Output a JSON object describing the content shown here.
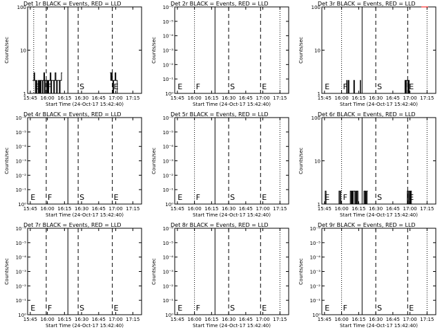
{
  "figure": {
    "background": "#ffffff",
    "foreground": "#000000",
    "lld_color": "#ff0000"
  },
  "chart_data": [
    {
      "type": "line",
      "title": "Det 1r BLACK = Events, RED = LLD",
      "xlabel": "Start Time (24-Oct-17 15:42:40)",
      "ylabel": "Counts/sec",
      "y_scale": "log",
      "ylim": [
        1,
        100
      ],
      "yticks": [
        "1",
        "10",
        "100"
      ],
      "xlim": [
        "15:42:40",
        "17:22:40"
      ],
      "xticks": [
        "15:45",
        "16:00",
        "16:15",
        "16:30",
        "16:45",
        "17:00",
        "17:15"
      ],
      "markers": [
        {
          "label": "E",
          "time": "15:48",
          "line": "dotted"
        },
        {
          "label": "F",
          "time": "15:59",
          "line": "dashed"
        },
        {
          "label": "S",
          "time": "16:27",
          "line": "dashed"
        },
        {
          "label": "E",
          "time": "16:57",
          "line": "dashed"
        }
      ],
      "extra_lines": [
        {
          "time": "16:18",
          "line": "solid"
        }
      ],
      "series": [
        {
          "color": "#000000",
          "segments": [
            {
              "start": "15:47",
              "end": "16:13",
              "values": [
                2,
                2,
                3,
                2,
                1,
                2,
                1,
                1,
                2,
                1,
                2,
                1,
                2,
                2,
                1,
                2,
                3,
                1,
                2,
                2,
                1,
                2,
                1,
                2,
                2,
                3,
                1,
                2,
                2,
                2,
                1,
                2,
                3,
                2,
                1,
                2,
                2,
                2,
                1,
                2,
                2,
                3
              ]
            },
            {
              "start": "16:55",
              "end": "17:02",
              "values": [
                3,
                2,
                3,
                2,
                1,
                2,
                2,
                3,
                2,
                2,
                1
              ]
            }
          ]
        }
      ]
    },
    {
      "type": "line",
      "title": "Det 2r BLACK = Events, RED = LLD",
      "xlabel": "Start Time (24-Oct-17 15:42:40)",
      "ylabel": "Counts/sec",
      "y_scale": "log",
      "ylim": [
        1,
        1e-06
      ],
      "yticks": [
        "10⁰",
        "10⁻¹",
        "10⁻²",
        "10⁻³",
        "10⁻⁴",
        "10⁻⁵",
        "10⁻⁶"
      ],
      "xlim": [
        "15:42:40",
        "17:22:40"
      ],
      "xticks": [
        "15:45",
        "16:00",
        "16:15",
        "16:30",
        "16:45",
        "17:00",
        "17:15"
      ],
      "markers": [
        {
          "label": "E",
          "time": "15:44",
          "line": "none"
        },
        {
          "label": "F",
          "time": "16:00",
          "line": "dotted"
        },
        {
          "label": "S",
          "time": "16:30",
          "line": "dashed"
        },
        {
          "label": "E",
          "time": "16:58",
          "line": "dashed"
        }
      ],
      "extra_lines": [
        {
          "time": "16:18",
          "line": "solid"
        },
        {
          "time": "17:15",
          "line": "dotted"
        }
      ],
      "series": []
    },
    {
      "type": "line",
      "title": "Det 3r BLACK = Events, RED = LLD",
      "xlabel": "Start Time (24-Oct-17 15:42:40)",
      "ylabel": "Counts/sec",
      "y_scale": "log",
      "ylim": [
        1,
        100
      ],
      "yticks": [
        "1",
        "10",
        "100"
      ],
      "xlim": [
        "15:42:40",
        "17:22:40"
      ],
      "xticks": [
        "15:45",
        "16:00",
        "16:15",
        "16:30",
        "16:45",
        "17:00",
        "17:15"
      ],
      "markers": [
        {
          "label": "E",
          "time": "15:44",
          "line": "none"
        },
        {
          "label": "F",
          "time": "16:00",
          "line": "dotted"
        },
        {
          "label": "S",
          "time": "16:30",
          "line": "dashed"
        },
        {
          "label": "E",
          "time": "16:58",
          "line": "dashed"
        }
      ],
      "extra_lines": [
        {
          "time": "16:18",
          "line": "solid"
        },
        {
          "time": "17:15",
          "line": "dotted"
        }
      ],
      "series": [
        {
          "color": "#000000",
          "segments": [
            {
              "start": "16:04",
              "end": "16:07",
              "values": [
                1,
                2,
                1,
                1,
                2,
                1
              ]
            },
            {
              "start": "16:10",
              "end": "16:12",
              "values": [
                1,
                2,
                1
              ]
            },
            {
              "start": "16:16",
              "end": "16:17",
              "values": [
                1,
                2,
                1
              ]
            },
            {
              "start": "16:55",
              "end": "17:00",
              "values": [
                1,
                2,
                1,
                2,
                2,
                1,
                2,
                1
              ]
            }
          ]
        },
        {
          "color": "#ff0000",
          "segments": [
            {
              "start": "17:10",
              "end": "17:16",
              "values": [
                100,
                100,
                100,
                100
              ]
            }
          ]
        }
      ]
    },
    {
      "type": "line",
      "title": "Det 4r BLACK = Events, RED = LLD",
      "xlabel": "Start Time (24-Oct-17 15:42:40)",
      "ylabel": "Counts/sec",
      "y_scale": "log",
      "ylim": [
        1,
        1e-06
      ],
      "yticks": [
        "10⁰",
        "10⁻¹",
        "10⁻²",
        "10⁻³",
        "10⁻⁴",
        "10⁻⁵",
        "10⁻⁶"
      ],
      "xlim": [
        "15:42:40",
        "17:22:40"
      ],
      "xticks": [
        "15:45",
        "16:00",
        "16:15",
        "16:30",
        "16:45",
        "17:00",
        "17:15"
      ],
      "markers": [
        {
          "label": "E",
          "time": "15:44",
          "line": "none"
        },
        {
          "label": "F",
          "time": "15:59",
          "line": "dashed"
        },
        {
          "label": "S",
          "time": "16:27",
          "line": "dashed"
        },
        {
          "label": "E",
          "time": "16:57",
          "line": "dashed"
        }
      ],
      "extra_lines": [
        {
          "time": "16:18",
          "line": "solid"
        }
      ],
      "series": []
    },
    {
      "type": "line",
      "title": "Det 5r BLACK = Events, RED = LLD",
      "xlabel": "Start Time (24-Oct-17 15:42:40)",
      "ylabel": "Counts/sec",
      "y_scale": "log",
      "ylim": [
        1,
        1e-06
      ],
      "yticks": [
        "10⁰",
        "10⁻¹",
        "10⁻²",
        "10⁻³",
        "10⁻⁴",
        "10⁻⁵",
        "10⁻⁶"
      ],
      "xlim": [
        "15:42:40",
        "17:22:40"
      ],
      "xticks": [
        "15:45",
        "16:00",
        "16:15",
        "16:30",
        "16:45",
        "17:00",
        "17:15"
      ],
      "markers": [
        {
          "label": "E",
          "time": "15:44",
          "line": "none"
        },
        {
          "label": "F",
          "time": "16:00",
          "line": "dotted"
        },
        {
          "label": "S",
          "time": "16:30",
          "line": "dashed"
        },
        {
          "label": "E",
          "time": "16:58",
          "line": "dashed"
        }
      ],
      "extra_lines": [
        {
          "time": "16:18",
          "line": "solid"
        },
        {
          "time": "17:15",
          "line": "dotted"
        }
      ],
      "series": []
    },
    {
      "type": "line",
      "title": "Det 6r BLACK = Events, RED = LLD",
      "xlabel": "Start Time (24-Oct-17 15:42:40)",
      "ylabel": "Counts/sec",
      "y_scale": "log",
      "ylim": [
        1,
        100
      ],
      "yticks": [
        "1",
        "10",
        "100"
      ],
      "xlim": [
        "15:42:40",
        "17:22:40"
      ],
      "xticks": [
        "15:45",
        "16:00",
        "16:15",
        "16:30",
        "16:45",
        "17:00",
        "17:15"
      ],
      "markers": [
        {
          "label": "E",
          "time": "15:44",
          "line": "none"
        },
        {
          "label": "F",
          "time": "16:00",
          "line": "dotted"
        },
        {
          "label": "S",
          "time": "16:30",
          "line": "dashed"
        },
        {
          "label": "E",
          "time": "16:58",
          "line": "dashed"
        }
      ],
      "extra_lines": [
        {
          "time": "16:18",
          "line": "solid"
        },
        {
          "time": "17:15",
          "line": "dotted"
        }
      ],
      "series": [
        {
          "color": "#000000",
          "segments": [
            {
              "start": "15:45",
              "end": "15:47",
              "values": [
                1,
                2,
                1
              ]
            },
            {
              "start": "15:57",
              "end": "16:00",
              "values": [
                1,
                2,
                1,
                2
              ]
            },
            {
              "start": "16:07",
              "end": "16:15",
              "values": [
                1,
                2,
                1,
                2,
                1,
                2,
                2,
                1,
                2,
                1,
                2,
                1
              ]
            },
            {
              "start": "16:19",
              "end": "16:23",
              "values": [
                1,
                2,
                1,
                2,
                1,
                2
              ]
            },
            {
              "start": "16:57",
              "end": "17:02",
              "values": [
                1,
                2,
                1,
                2,
                1,
                2,
                1
              ]
            }
          ]
        }
      ]
    },
    {
      "type": "line",
      "title": "Det 7r BLACK = Events, RED = LLD",
      "xlabel": "Start Time (24-Oct-17 15:42:40)",
      "ylabel": "Counts/sec",
      "y_scale": "log",
      "ylim": [
        1,
        1e-06
      ],
      "yticks": [
        "10⁰",
        "10⁻¹",
        "10⁻²",
        "10⁻³",
        "10⁻⁴",
        "10⁻⁵",
        "10⁻⁶"
      ],
      "xlim": [
        "15:42:40",
        "17:22:40"
      ],
      "xticks": [
        "15:45",
        "16:00",
        "16:15",
        "16:30",
        "16:45",
        "17:00",
        "17:15"
      ],
      "markers": [
        {
          "label": "E",
          "time": "15:44",
          "line": "none"
        },
        {
          "label": "F",
          "time": "15:59",
          "line": "dashed"
        },
        {
          "label": "S",
          "time": "16:27",
          "line": "dashed"
        },
        {
          "label": "E",
          "time": "16:57",
          "line": "dashed"
        }
      ],
      "extra_lines": [
        {
          "time": "16:18",
          "line": "solid"
        }
      ],
      "series": []
    },
    {
      "type": "line",
      "title": "Det 8r BLACK = Events, RED = LLD",
      "xlabel": "Start Time (24-Oct-17 15:42:40)",
      "ylabel": "Counts/sec",
      "y_scale": "log",
      "ylim": [
        1,
        1e-06
      ],
      "yticks": [
        "10⁰",
        "10⁻¹",
        "10⁻²",
        "10⁻³",
        "10⁻⁴",
        "10⁻⁵",
        "10⁻⁶"
      ],
      "xlim": [
        "15:42:40",
        "17:22:40"
      ],
      "xticks": [
        "15:45",
        "16:00",
        "16:15",
        "16:30",
        "16:45",
        "17:00",
        "17:15"
      ],
      "markers": [
        {
          "label": "E",
          "time": "15:44",
          "line": "none"
        },
        {
          "label": "F",
          "time": "16:00",
          "line": "dotted"
        },
        {
          "label": "S",
          "time": "16:30",
          "line": "dashed"
        },
        {
          "label": "E",
          "time": "16:58",
          "line": "dashed"
        }
      ],
      "extra_lines": [
        {
          "time": "16:18",
          "line": "solid"
        },
        {
          "time": "17:15",
          "line": "dotted"
        }
      ],
      "series": []
    },
    {
      "type": "line",
      "title": "Det 9r BLACK = Events, RED = LLD",
      "xlabel": "Start Time (24-Oct-17 15:42:40)",
      "ylabel": "Counts/sec",
      "y_scale": "log",
      "ylim": [
        1,
        1e-06
      ],
      "yticks": [
        "10⁰",
        "10⁻¹",
        "10⁻²",
        "10⁻³",
        "10⁻⁴",
        "10⁻⁵",
        "10⁻⁶"
      ],
      "xlim": [
        "15:42:40",
        "17:22:40"
      ],
      "xticks": [
        "15:45",
        "16:00",
        "16:15",
        "16:30",
        "16:45",
        "17:00",
        "17:15"
      ],
      "markers": [
        {
          "label": "E",
          "time": "15:44",
          "line": "none"
        },
        {
          "label": "F",
          "time": "16:00",
          "line": "dotted"
        },
        {
          "label": "S",
          "time": "16:30",
          "line": "dashed"
        },
        {
          "label": "E",
          "time": "16:58",
          "line": "dashed"
        }
      ],
      "extra_lines": [
        {
          "time": "16:18",
          "line": "solid"
        },
        {
          "time": "17:15",
          "line": "dotted"
        }
      ],
      "series": []
    }
  ]
}
